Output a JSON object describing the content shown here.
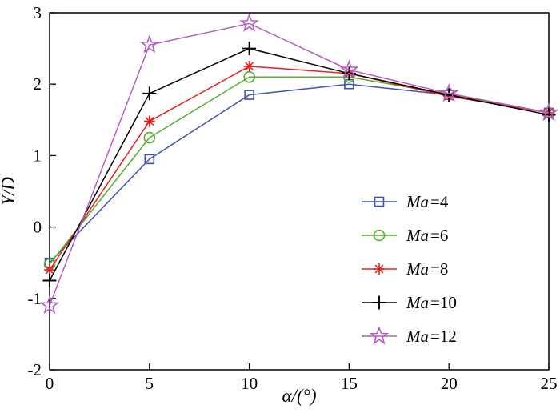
{
  "chart_data": {
    "type": "line",
    "title": "",
    "xlabel": "α/(°)",
    "ylabel": "Y/D",
    "xlim": [
      0,
      25
    ],
    "ylim": [
      -2,
      3
    ],
    "xticks": [
      0,
      5,
      10,
      15,
      20,
      25
    ],
    "yticks": [
      -2,
      -1,
      0,
      1,
      2,
      3
    ],
    "grid": false,
    "legend_position": "right-center-inside",
    "frame": true,
    "x": [
      0,
      5,
      10,
      15,
      20,
      25
    ],
    "series": [
      {
        "name": "Ma=4",
        "marker": "square",
        "color": "#3f51b5",
        "values": [
          -0.5,
          0.95,
          1.85,
          2.0,
          1.85,
          1.6
        ]
      },
      {
        "name": "Ma=6",
        "marker": "circle",
        "color": "#55b02a",
        "values": [
          -0.52,
          1.25,
          2.1,
          2.1,
          1.86,
          1.6
        ]
      },
      {
        "name": "Ma=8",
        "marker": "asterisk",
        "color": "#e82020",
        "values": [
          -0.6,
          1.48,
          2.25,
          2.15,
          1.83,
          1.6
        ]
      },
      {
        "name": "Ma=10",
        "marker": "plus",
        "color": "#000000",
        "values": [
          -0.75,
          1.87,
          2.5,
          2.15,
          1.85,
          1.57
        ]
      },
      {
        "name": "Ma=12",
        "marker": "star",
        "color": "#b35ec1",
        "values": [
          -1.1,
          2.55,
          2.85,
          2.2,
          1.87,
          1.6
        ]
      }
    ]
  }
}
